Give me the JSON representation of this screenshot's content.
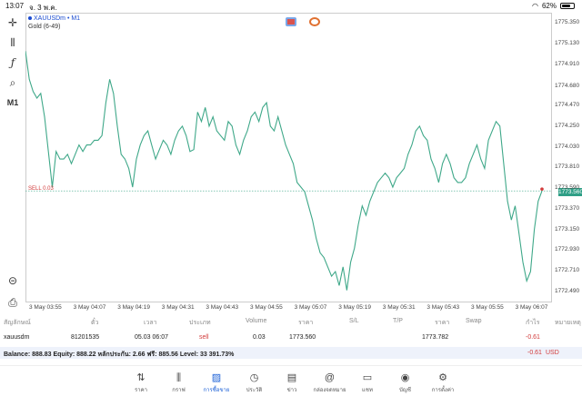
{
  "status": {
    "time": "13:07",
    "date": "จ. 3 พ.ค.",
    "battery": "62%",
    "battery_level": 0.62
  },
  "chart": {
    "symbol": "XAUUSDm • M1",
    "description": "Gold (6-49)",
    "sell_label": "SELL 0.03",
    "current_price": "1773.560",
    "y_ticks": [
      "1775.350",
      "1775.130",
      "1774.910",
      "1774.680",
      "1774.470",
      "1774.250",
      "1774.030",
      "1773.810",
      "1773.590",
      "1773.370",
      "1773.150",
      "1772.930",
      "1772.710",
      "1772.490"
    ],
    "x_ticks": [
      "3 May 03:55",
      "3 May 04:07",
      "3 May 04:19",
      "3 May 04:31",
      "3 May 04:43",
      "3 May 04:55",
      "3 May 05:07",
      "3 May 05:19",
      "3 May 05:31",
      "3 May 05:43",
      "3 May 05:55",
      "3 May 06:07"
    ]
  },
  "chart_data": {
    "type": "line",
    "ylim": [
      1772.38,
      1775.46
    ],
    "sell_level": 1773.56,
    "values": [
      1775.05,
      1774.75,
      1774.62,
      1774.55,
      1774.6,
      1774.35,
      1773.98,
      1773.6,
      1773.98,
      1773.9,
      1773.9,
      1773.95,
      1773.85,
      1773.95,
      1774.05,
      1773.98,
      1774.05,
      1774.05,
      1774.1,
      1774.1,
      1774.15,
      1774.5,
      1774.75,
      1774.6,
      1774.25,
      1773.95,
      1773.9,
      1773.8,
      1773.6,
      1773.9,
      1774.05,
      1774.15,
      1774.2,
      1774.05,
      1773.9,
      1774.0,
      1774.1,
      1774.05,
      1773.95,
      1774.1,
      1774.2,
      1774.25,
      1774.15,
      1773.98,
      1774.0,
      1774.4,
      1774.3,
      1774.45,
      1774.25,
      1774.35,
      1774.2,
      1774.15,
      1774.1,
      1774.3,
      1774.25,
      1774.05,
      1773.95,
      1774.1,
      1774.2,
      1774.35,
      1774.4,
      1774.3,
      1774.45,
      1774.5,
      1774.25,
      1774.2,
      1774.35,
      1774.2,
      1774.05,
      1773.95,
      1773.85,
      1773.65,
      1773.6,
      1773.55,
      1773.4,
      1773.25,
      1773.05,
      1772.9,
      1772.85,
      1772.75,
      1772.65,
      1772.7,
      1772.55,
      1772.75,
      1772.5,
      1772.8,
      1772.95,
      1773.2,
      1773.4,
      1773.3,
      1773.45,
      1773.55,
      1773.65,
      1773.7,
      1773.75,
      1773.7,
      1773.6,
      1773.7,
      1773.75,
      1773.8,
      1773.95,
      1774.05,
      1774.2,
      1774.25,
      1774.15,
      1774.1,
      1773.9,
      1773.8,
      1773.65,
      1773.85,
      1773.95,
      1773.85,
      1773.7,
      1773.65,
      1773.65,
      1773.7,
      1773.85,
      1773.95,
      1774.05,
      1773.9,
      1773.8,
      1774.1,
      1774.2,
      1774.3,
      1774.25,
      1773.85,
      1773.45,
      1773.25,
      1773.4,
      1773.1,
      1772.8,
      1772.6,
      1772.7,
      1773.15,
      1773.45,
      1773.56
    ]
  },
  "positions": {
    "headers": [
      "สัญลักษณ์",
      "ตั๋ว",
      "เวลา",
      "ประเภท",
      "Volume",
      "ราคา",
      "S/L",
      "T/P",
      "ราคา",
      "Swap",
      "กำไร",
      "หมายเหตุ"
    ],
    "row": {
      "symbol": "xauusdm",
      "ticket": "81201535",
      "time": "05.03 06:07",
      "type": "sell",
      "volume": "0.03",
      "price": "1773.560",
      "current": "1773.782",
      "profit": "-0.61"
    }
  },
  "balance": {
    "text": "Balance: 888.83 Equity: 888.22 หลักประกัน: 2.66 ฟรี: 885.56 Level: 33 391.73%",
    "profit": "-0.61",
    "currency": "USD"
  },
  "tabs": [
    {
      "label": "ราคา",
      "icon": "arrows-icon"
    },
    {
      "label": "กราฟ",
      "icon": "candles-icon"
    },
    {
      "label": "การซื้อขาย",
      "icon": "chart-icon"
    },
    {
      "label": "ประวัติ",
      "icon": "history-icon"
    },
    {
      "label": "ข่าว",
      "icon": "news-icon"
    },
    {
      "label": "กล่องจดหมาย",
      "icon": "mail-icon"
    },
    {
      "label": "แชท",
      "icon": "chat-icon"
    },
    {
      "label": "บัญชี",
      "icon": "account-icon"
    },
    {
      "label": "การตั้งค่า",
      "icon": "gear-icon"
    }
  ],
  "colors": {
    "line": "#3fa889",
    "sell": "#d23b3b",
    "active_tab": "#1a5fd6"
  }
}
